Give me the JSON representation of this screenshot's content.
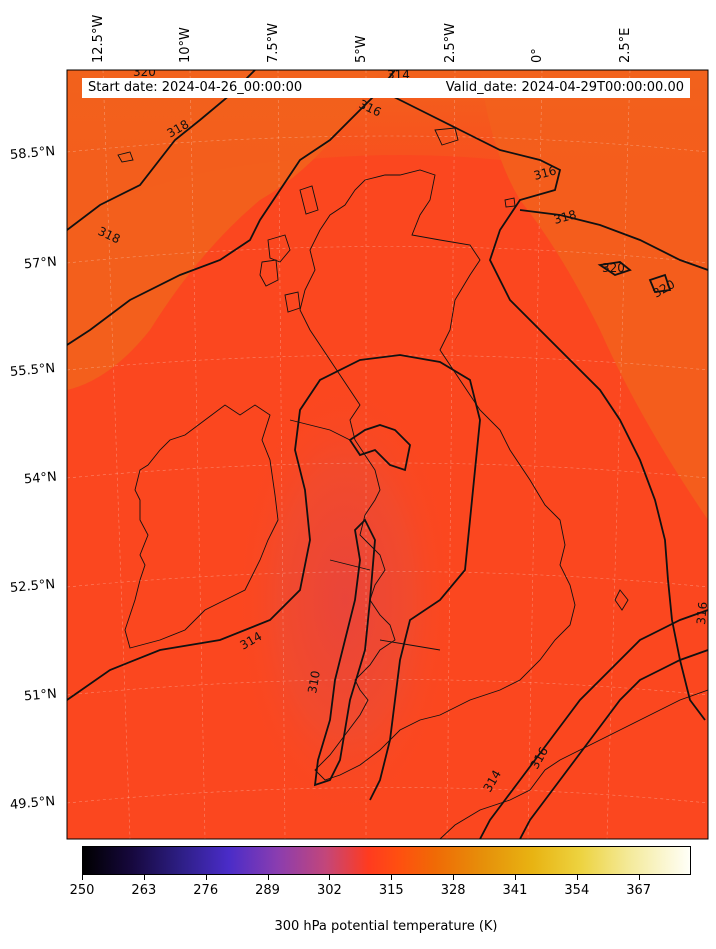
{
  "map": {
    "header": {
      "start": "Start date: 2024-04-26_00:00:00",
      "valid": "Valid_date: 2024-04-29T00:00:00.00"
    },
    "lon_labels": [
      "12.5°W",
      "10°W",
      "7.5°W",
      "5°W",
      "2.5°W",
      "0°",
      "2.5°E"
    ],
    "lat_labels": [
      "58.5°N",
      "57°N",
      "55.5°N",
      "54°N",
      "52.5°N",
      "51°N",
      "49.5°N"
    ],
    "contour_labels": [
      "320",
      "314",
      "316",
      "318",
      "316",
      "318",
      "320",
      "320",
      "318",
      "316",
      "314",
      "310",
      "314",
      "316",
      "316"
    ],
    "field_colors": {
      "warm": "#f2621c",
      "mid": "#fb471f",
      "cool": "#e9453a"
    }
  },
  "colorbar": {
    "ticks": [
      "250",
      "263",
      "276",
      "289",
      "302",
      "315",
      "328",
      "341",
      "354",
      "367"
    ],
    "title": "300 hPa potential temperature (K)",
    "range": [
      250,
      378
    ],
    "colormap": "CMRmap"
  }
}
